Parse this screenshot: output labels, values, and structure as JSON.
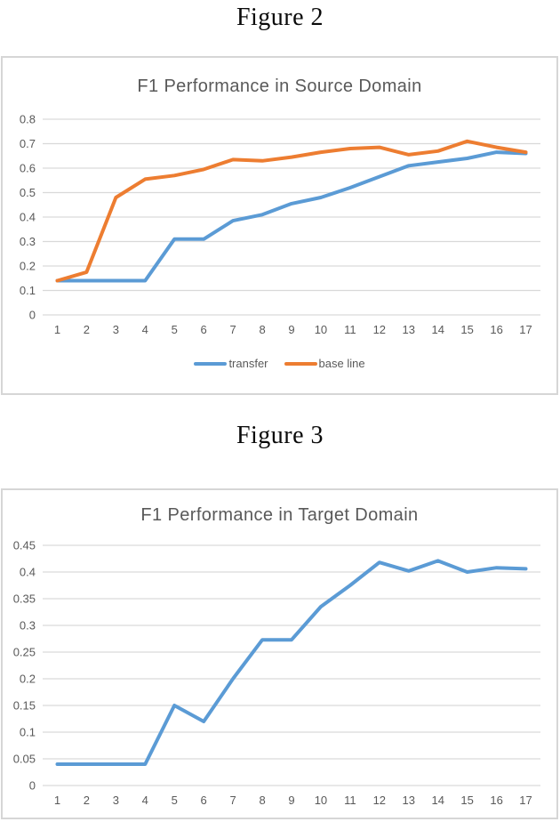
{
  "figures": [
    {
      "caption": "Figure 2"
    },
    {
      "caption": "Figure 3"
    }
  ],
  "colors": {
    "transfer_blue": "#5B9BD5",
    "baseline_orange": "#ED7D31",
    "gridline": "#D9D9D9",
    "axis_text": "#595959",
    "chart_border": "#D6D6D6"
  },
  "chart_data": [
    {
      "type": "line",
      "title": "F1 Performance in Source Domain",
      "x": [
        1,
        2,
        3,
        4,
        5,
        6,
        7,
        8,
        9,
        10,
        11,
        12,
        13,
        14,
        15,
        16,
        17
      ],
      "x_labels": [
        "1",
        "2",
        "3",
        "4",
        "5",
        "6",
        "7",
        "8",
        "9",
        "10",
        "11",
        "12",
        "13",
        "14",
        "15",
        "16",
        "17"
      ],
      "series": [
        {
          "name": "transfer",
          "color": "#5B9BD5",
          "values": [
            0.14,
            0.14,
            0.14,
            0.14,
            0.31,
            0.31,
            0.385,
            0.41,
            0.455,
            0.48,
            0.52,
            0.565,
            0.61,
            0.625,
            0.64,
            0.665,
            0.66
          ]
        },
        {
          "name": "base line",
          "color": "#ED7D31",
          "values": [
            0.14,
            0.175,
            0.48,
            0.555,
            0.57,
            0.595,
            0.635,
            0.63,
            0.645,
            0.665,
            0.68,
            0.685,
            0.655,
            0.67,
            0.71,
            0.685,
            0.665
          ]
        }
      ],
      "ylim": [
        0,
        0.8
      ],
      "ytick_values": [
        0,
        0.1,
        0.2,
        0.3,
        0.4,
        0.5,
        0.6,
        0.7,
        0.8
      ],
      "ytick_labels": [
        "0",
        "0.1",
        "0.2",
        "0.3",
        "0.4",
        "0.5",
        "0.6",
        "0.7",
        "0.8"
      ],
      "grid": true,
      "legend_position": "bottom"
    },
    {
      "type": "line",
      "title": "F1 Performance in Target Domain",
      "x": [
        1,
        2,
        3,
        4,
        5,
        6,
        7,
        8,
        9,
        10,
        11,
        12,
        13,
        14,
        15,
        16,
        17
      ],
      "x_labels": [
        "1",
        "2",
        "3",
        "4",
        "5",
        "6",
        "7",
        "8",
        "9",
        "10",
        "11",
        "12",
        "13",
        "14",
        "15",
        "16",
        "17"
      ],
      "series": [
        {
          "name": "",
          "color": "#5B9BD5",
          "values": [
            0.04,
            0.04,
            0.04,
            0.04,
            0.15,
            0.12,
            0.2,
            0.273,
            0.273,
            0.335,
            0.375,
            0.418,
            0.402,
            0.421,
            0.4,
            0.408,
            0.406
          ]
        }
      ],
      "ylim": [
        0,
        0.45
      ],
      "ytick_values": [
        0,
        0.05,
        0.1,
        0.15,
        0.2,
        0.25,
        0.3,
        0.35,
        0.4,
        0.45
      ],
      "ytick_labels": [
        "0",
        "0.05",
        "0.1",
        "0.15",
        "0.2",
        "0.25",
        "0.3",
        "0.35",
        "0.4",
        "0.45"
      ],
      "grid": true,
      "legend_position": "none"
    }
  ]
}
